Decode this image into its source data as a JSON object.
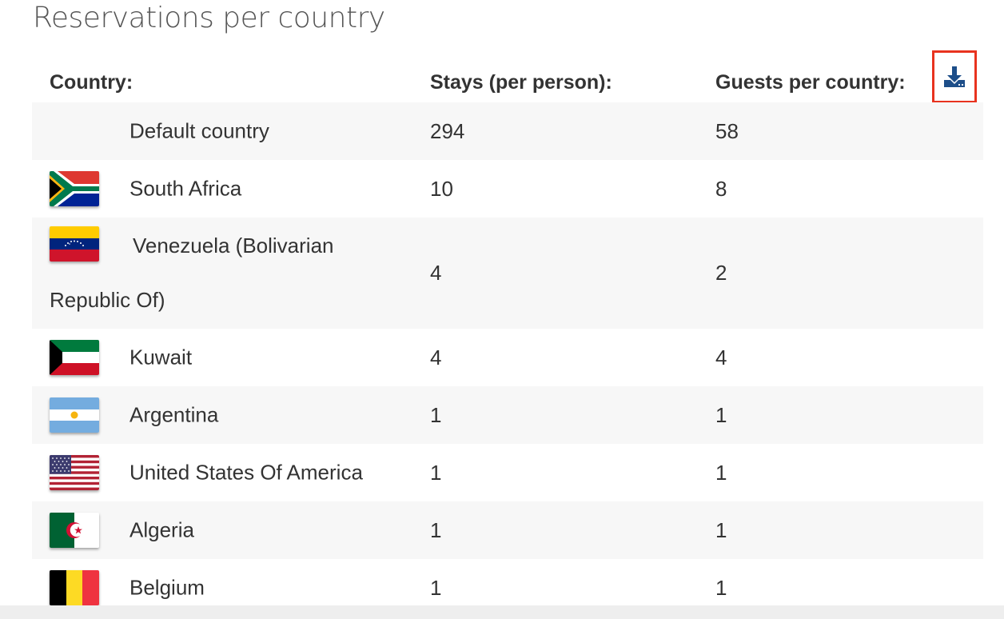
{
  "title": "Reservations per country",
  "table": {
    "headers": [
      "Country:",
      "Stays (per person):",
      "Guests per country:"
    ],
    "rows": [
      {
        "country": "Default country",
        "flag": "none",
        "stays": "294",
        "guests": "58"
      },
      {
        "country": "South Africa",
        "flag": "south-africa-flag",
        "stays": "10",
        "guests": "8"
      },
      {
        "country_line1": "Venezuela (Bolivarian",
        "country_line2": "Republic Of)",
        "flag": "venezuela-flag",
        "stays": "4",
        "guests": "2"
      },
      {
        "country": "Kuwait",
        "flag": "kuwait-flag",
        "stays": "4",
        "guests": "4"
      },
      {
        "country": "Argentina",
        "flag": "argentina-flag",
        "stays": "1",
        "guests": "1"
      },
      {
        "country": "United States Of America",
        "flag": "usa-flag",
        "stays": "1",
        "guests": "1"
      },
      {
        "country": "Algeria",
        "flag": "algeria-flag",
        "stays": "1",
        "guests": "1"
      },
      {
        "country": "Belgium",
        "flag": "belgium-flag",
        "stays": "1",
        "guests": "1"
      }
    ]
  },
  "download": {
    "icon": "download-icon",
    "color": "#1d4e89",
    "highlight": "#e8331f"
  },
  "colors": {
    "row_alt": "#f7f7f7",
    "text": "#333333"
  }
}
